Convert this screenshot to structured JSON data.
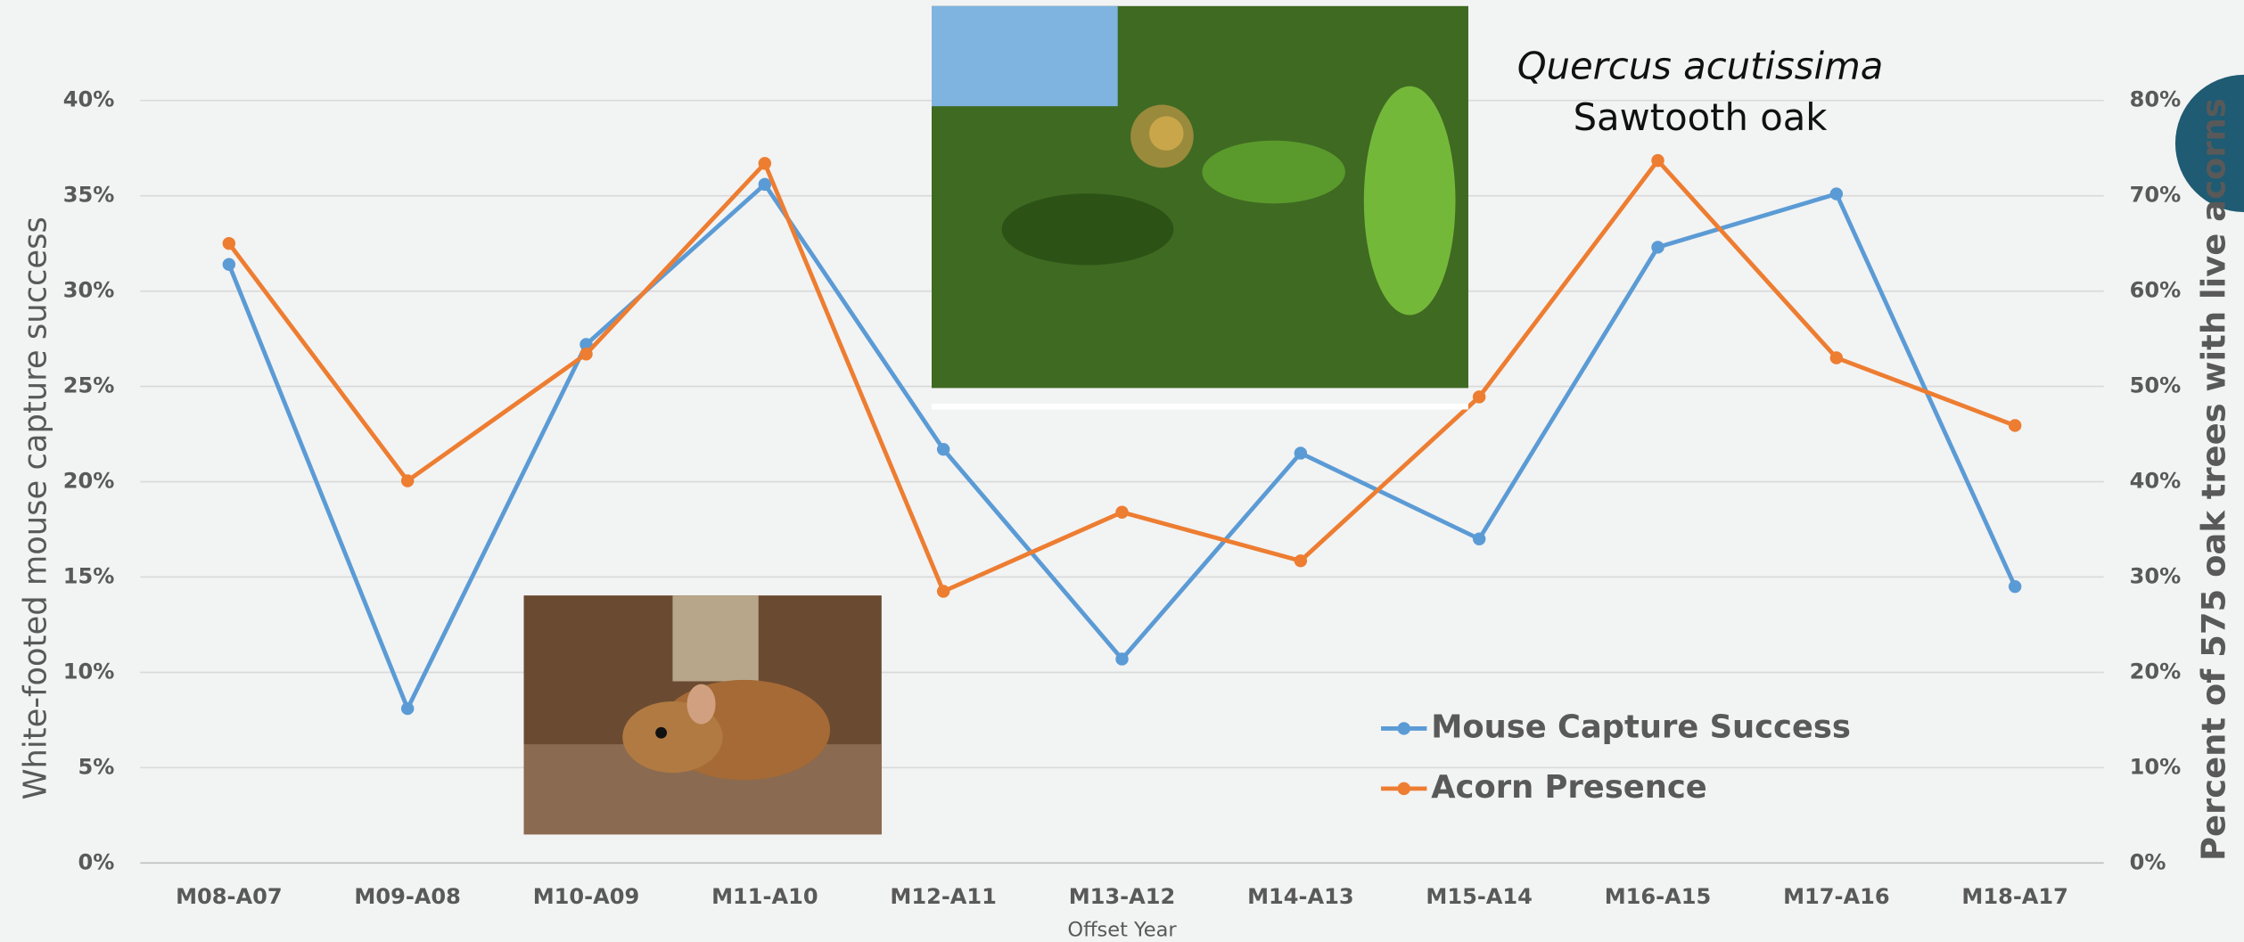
{
  "chart_data": {
    "type": "line",
    "annotations": [
      "Quercus acutissima",
      "Sawtooth oak"
    ],
    "x_label": "Offset Year",
    "y_label": "White-footed mouse capture success",
    "y2_label": "Percent of 575 oak trees with live acorns",
    "categories": [
      "M08-A07",
      "M09-A08",
      "M10-A09",
      "M11-A10",
      "M12-A11",
      "M13-A12",
      "M14-A13",
      "M15-A14",
      "M16-A15",
      "M17-A16",
      "M18-A17"
    ],
    "series": [
      {
        "name": "Mouse Capture Success",
        "color": "#5b9bd5",
        "values": [
          31.4,
          8.1,
          27.2,
          35.6,
          21.7,
          10.7,
          21.5,
          17.0,
          32.3,
          35.1,
          14.5
        ]
      },
      {
        "name": "Acorn Presence",
        "color": "#ed7d31",
        "axis": "y2",
        "values": [
          65.0,
          40.1,
          53.4,
          73.4,
          28.5,
          36.8,
          31.7,
          48.9,
          73.7,
          53.0,
          45.9
        ]
      }
    ],
    "ylim": [
      0,
      40
    ],
    "yticks": [
      {
        "value": 0,
        "label": "0%"
      },
      {
        "value": 5,
        "label": "5%"
      },
      {
        "value": 10,
        "label": "10%"
      },
      {
        "value": 15,
        "label": "15%"
      },
      {
        "value": 20,
        "label": "20%"
      },
      {
        "value": 25,
        "label": "25%"
      },
      {
        "value": 30,
        "label": "30%"
      },
      {
        "value": 35,
        "label": "35%"
      },
      {
        "value": 40,
        "label": "40%"
      }
    ],
    "y2lim": [
      0,
      80
    ],
    "y2ticks": [
      {
        "value": 0,
        "label": "0%"
      },
      {
        "value": 10,
        "label": "10%"
      },
      {
        "value": 20,
        "label": "20%"
      },
      {
        "value": 30,
        "label": "30%"
      },
      {
        "value": 40,
        "label": "40%"
      },
      {
        "value": 50,
        "label": "50%"
      },
      {
        "value": 60,
        "label": "60%"
      },
      {
        "value": 70,
        "label": "70%"
      },
      {
        "value": 80,
        "label": "80%"
      }
    ],
    "grid": true
  }
}
